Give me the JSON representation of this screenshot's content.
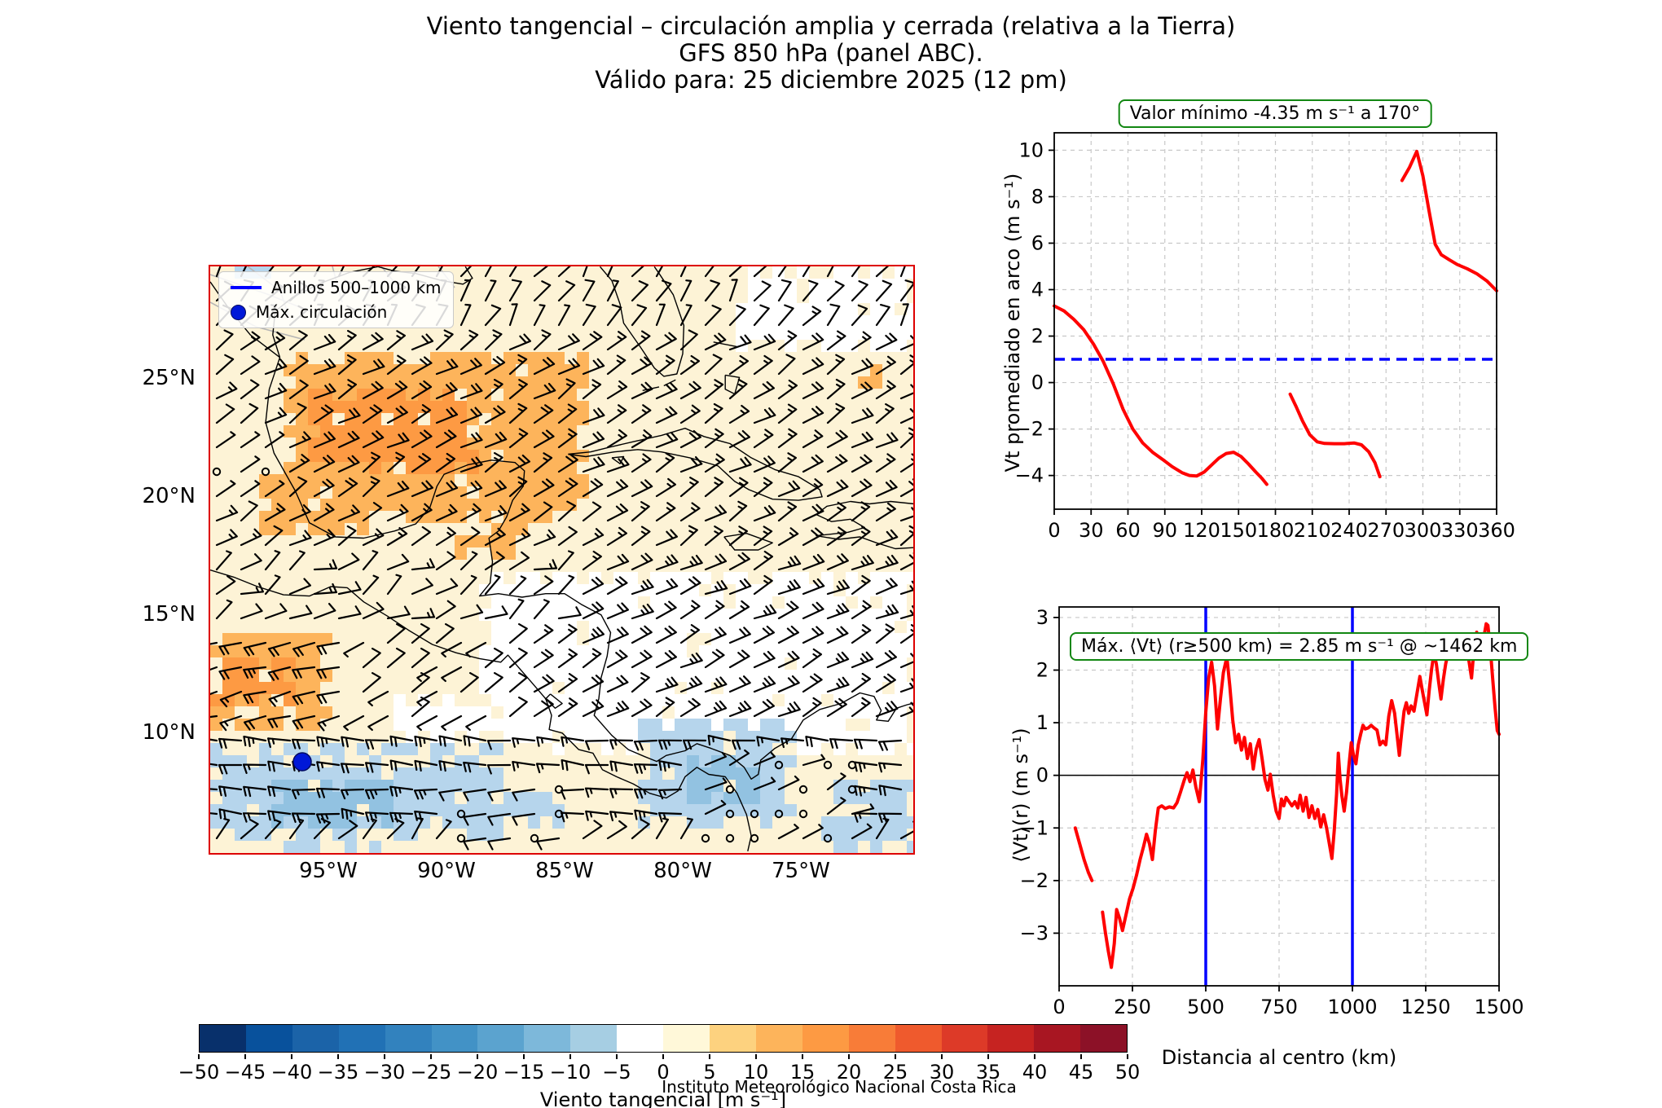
{
  "title": {
    "line1": "Viento tangencial – circulación amplia y cerrada (relativa a la Tierra)",
    "line2": "GFS 850 hPa (panel ABC).",
    "line3": "Válido para: 25 diciembre 2025 (12 pm)"
  },
  "map": {
    "legend": {
      "ring_label": "Anillos 500–1000 km",
      "max_label": "Máx. circulación"
    },
    "lat_ticks": [
      "25°N",
      "20°N",
      "15°N",
      "10°N"
    ],
    "lon_ticks": [
      "95°W",
      "90°W",
      "85°W",
      "80°W",
      "75°W"
    ],
    "border_color": "#dd0000",
    "marker_color": "#0018d8"
  },
  "chart_data": [
    {
      "type": "line",
      "annotation": "Valor mínimo -4.35 m s⁻¹ a 170°",
      "xlabel": "",
      "ylabel": "Vt promediado en arco (m s⁻¹)",
      "xlim": [
        0,
        360
      ],
      "ylim": [
        -5.45,
        10.75
      ],
      "xtick_vals": [
        0,
        30,
        60,
        90,
        120,
        150,
        180,
        210,
        240,
        270,
        300,
        330,
        360
      ],
      "xtick_labels": [
        "0",
        "30",
        "60",
        "90",
        "120",
        "150",
        "180",
        "210",
        "240",
        "270",
        "300",
        "330",
        "360"
      ],
      "ytick_vals": [
        -4,
        -2,
        0,
        2,
        4,
        6,
        8,
        10
      ],
      "ytick_labels": [
        "−4",
        "−2",
        "0",
        "2",
        "4",
        "6",
        "8",
        "10"
      ],
      "grid": true,
      "ref_hline_y": 1,
      "ref_color": "#0000ff",
      "series": [
        {
          "name": "Vt promediado",
          "color": "#ff0000",
          "segments": [
            [
              [
                0,
                3.3
              ],
              [
                8,
                3.08
              ],
              [
                16,
                2.72
              ],
              [
                24,
                2.28
              ],
              [
                32,
                1.65
              ],
              [
                40,
                0.9
              ],
              [
                48,
                -0.05
              ],
              [
                56,
                -1.15
              ],
              [
                64,
                -2.0
              ],
              [
                72,
                -2.6
              ],
              [
                80,
                -3.0
              ],
              [
                88,
                -3.3
              ],
              [
                96,
                -3.62
              ],
              [
                104,
                -3.88
              ],
              [
                110,
                -4.0
              ],
              [
                116,
                -4.02
              ],
              [
                122,
                -3.85
              ],
              [
                128,
                -3.55
              ],
              [
                134,
                -3.25
              ],
              [
                140,
                -3.05
              ],
              [
                146,
                -3.0
              ],
              [
                152,
                -3.18
              ],
              [
                158,
                -3.5
              ],
              [
                164,
                -3.85
              ],
              [
                169,
                -4.12
              ],
              [
                173,
                -4.38
              ]
            ],
            [
              [
                192,
                -0.5
              ],
              [
                197,
                -1.05
              ],
              [
                202,
                -1.65
              ],
              [
                208,
                -2.25
              ],
              [
                214,
                -2.55
              ],
              [
                220,
                -2.62
              ],
              [
                228,
                -2.63
              ],
              [
                236,
                -2.63
              ],
              [
                244,
                -2.6
              ],
              [
                250,
                -2.68
              ],
              [
                256,
                -2.98
              ],
              [
                261,
                -3.45
              ],
              [
                265,
                -4.05
              ]
            ],
            [
              [
                283,
                8.7
              ],
              [
                289,
                9.25
              ],
              [
                295,
                9.95
              ],
              [
                300,
                8.9
              ],
              [
                305,
                7.4
              ],
              [
                310,
                5.95
              ],
              [
                315,
                5.5
              ],
              [
                321,
                5.3
              ],
              [
                328,
                5.08
              ],
              [
                336,
                4.9
              ],
              [
                344,
                4.68
              ],
              [
                352,
                4.38
              ],
              [
                360,
                3.95
              ]
            ]
          ]
        }
      ]
    },
    {
      "type": "line",
      "annotation": "Máx. ⟨Vt⟩ (r≥500 km) = 2.85 m s⁻¹ @ ~1462 km",
      "xlabel": "Distancia al centro (km)",
      "ylabel": "⟨Vt⟩(r) (m s⁻¹)",
      "xlim": [
        0,
        1500
      ],
      "ylim": [
        -4.0,
        3.2
      ],
      "xtick_vals": [
        0,
        250,
        500,
        750,
        1000,
        1250,
        1500
      ],
      "xtick_labels": [
        "0",
        "250",
        "500",
        "750",
        "1000",
        "1250",
        "1500"
      ],
      "ytick_vals": [
        -3,
        -2,
        -1,
        0,
        1,
        2,
        3
      ],
      "ytick_labels": [
        "−3",
        "−2",
        "−1",
        "0",
        "1",
        "2",
        "3"
      ],
      "grid": true,
      "zero_line": true,
      "ref_vlines": [
        500,
        1000
      ],
      "ref_color": "#0000ff",
      "series": [
        {
          "name": "⟨Vt⟩(r)",
          "color": "#ff0000",
          "segments": [
            [
              [
                55,
                -1.0
              ],
              [
                70,
                -1.3
              ],
              [
                85,
                -1.6
              ],
              [
                100,
                -1.85
              ],
              [
                112,
                -2.0
              ]
            ],
            [
              [
                148,
                -2.6
              ],
              [
                158,
                -3.0
              ],
              [
                168,
                -3.35
              ],
              [
                178,
                -3.65
              ],
              [
                188,
                -3.2
              ],
              [
                196,
                -2.55
              ],
              [
                206,
                -2.72
              ],
              [
                216,
                -2.95
              ],
              [
                228,
                -2.65
              ],
              [
                240,
                -2.35
              ],
              [
                252,
                -2.15
              ],
              [
                264,
                -1.9
              ],
              [
                276,
                -1.6
              ],
              [
                288,
                -1.35
              ],
              [
                298,
                -1.12
              ],
              [
                308,
                -1.3
              ],
              [
                318,
                -1.6
              ],
              [
                328,
                -1.05
              ],
              [
                338,
                -0.62
              ],
              [
                350,
                -0.58
              ],
              [
                362,
                -0.63
              ],
              [
                376,
                -0.6
              ],
              [
                390,
                -0.62
              ],
              [
                402,
                -0.52
              ],
              [
                414,
                -0.32
              ],
              [
                426,
                -0.1
              ],
              [
                436,
                0.05
              ],
              [
                446,
                -0.12
              ],
              [
                456,
                0.1
              ],
              [
                466,
                -0.22
              ],
              [
                478,
                -0.5
              ],
              [
                490,
                0.3
              ],
              [
                500,
                1.2
              ],
              [
                510,
                1.85
              ],
              [
                520,
                2.15
              ],
              [
                530,
                1.7
              ],
              [
                540,
                0.88
              ],
              [
                550,
                1.45
              ],
              [
                560,
                1.95
              ],
              [
                572,
                2.25
              ],
              [
                582,
                1.7
              ],
              [
                592,
                1.05
              ],
              [
                602,
                0.62
              ],
              [
                612,
                0.78
              ],
              [
                622,
                0.48
              ],
              [
                632,
                0.72
              ],
              [
                642,
                0.32
              ],
              [
                652,
                0.6
              ],
              [
                662,
                0.12
              ],
              [
                672,
                0.5
              ],
              [
                682,
                0.68
              ],
              [
                692,
                0.32
              ],
              [
                702,
                -0.08
              ],
              [
                712,
                -0.28
              ],
              [
                720,
                0.02
              ],
              [
                730,
                -0.38
              ],
              [
                740,
                -0.68
              ],
              [
                750,
                -0.82
              ],
              [
                758,
                -0.45
              ],
              [
                766,
                -0.58
              ],
              [
                774,
                -0.42
              ],
              [
                784,
                -0.5
              ],
              [
                794,
                -0.58
              ],
              [
                804,
                -0.5
              ],
              [
                814,
                -0.62
              ],
              [
                822,
                -0.38
              ],
              [
                832,
                -0.68
              ],
              [
                842,
                -0.42
              ],
              [
                852,
                -0.8
              ],
              [
                862,
                -0.58
              ],
              [
                872,
                -0.82
              ],
              [
                882,
                -0.65
              ],
              [
                892,
                -0.98
              ],
              [
                902,
                -0.75
              ],
              [
                912,
                -1.0
              ],
              [
                922,
                -1.32
              ],
              [
                930,
                -1.58
              ],
              [
                938,
                -1.05
              ],
              [
                946,
                -0.35
              ],
              [
                952,
                0.42
              ],
              [
                958,
                -0.08
              ],
              [
                964,
                -0.38
              ],
              [
                972,
                -0.68
              ],
              [
                980,
                -0.32
              ],
              [
                988,
                0.18
              ],
              [
                996,
                0.62
              ],
              [
                1004,
                0.38
              ],
              [
                1012,
                0.22
              ],
              [
                1020,
                0.58
              ],
              [
                1028,
                0.78
              ],
              [
                1036,
                0.95
              ],
              [
                1044,
                0.88
              ],
              [
                1054,
                0.9
              ],
              [
                1064,
                0.95
              ],
              [
                1074,
                0.9
              ],
              [
                1084,
                0.86
              ],
              [
                1094,
                0.58
              ],
              [
                1104,
                0.65
              ],
              [
                1114,
                0.58
              ],
              [
                1124,
                1.12
              ],
              [
                1134,
                1.42
              ],
              [
                1144,
                1.18
              ],
              [
                1152,
                0.78
              ],
              [
                1160,
                0.38
              ],
              [
                1168,
                0.82
              ],
              [
                1176,
                1.22
              ],
              [
                1184,
                1.38
              ],
              [
                1192,
                1.18
              ],
              [
                1200,
                1.32
              ],
              [
                1210,
                1.22
              ],
              [
                1220,
                1.55
              ],
              [
                1230,
                1.88
              ],
              [
                1238,
                1.62
              ],
              [
                1246,
                1.38
              ],
              [
                1254,
                1.15
              ],
              [
                1262,
                1.62
              ],
              [
                1270,
                2.02
              ],
              [
                1278,
                2.32
              ],
              [
                1286,
                2.12
              ],
              [
                1294,
                1.78
              ],
              [
                1302,
                1.45
              ],
              [
                1310,
                1.82
              ],
              [
                1318,
                2.12
              ],
              [
                1326,
                2.32
              ],
              [
                1336,
                2.42
              ],
              [
                1346,
                2.52
              ],
              [
                1356,
                2.35
              ],
              [
                1366,
                2.58
              ],
              [
                1376,
                2.42
              ],
              [
                1386,
                2.62
              ],
              [
                1396,
                2.22
              ],
              [
                1406,
                1.85
              ],
              [
                1416,
                2.5
              ],
              [
                1424,
                2.72
              ],
              [
                1432,
                2.42
              ],
              [
                1440,
                2.22
              ],
              [
                1448,
                2.62
              ],
              [
                1456,
                2.88
              ],
              [
                1462,
                2.85
              ],
              [
                1470,
                2.42
              ],
              [
                1478,
                1.85
              ],
              [
                1486,
                1.3
              ],
              [
                1494,
                0.85
              ],
              [
                1500,
                0.78
              ]
            ]
          ]
        }
      ]
    }
  ],
  "colorbar": {
    "label": "Viento tangencial [m s⁻¹]",
    "ticks": [
      "−50",
      "−45",
      "−40",
      "−35",
      "−30",
      "−25",
      "−20",
      "−15",
      "−10",
      "−5",
      "0",
      "5",
      "10",
      "15",
      "20",
      "25",
      "30",
      "35",
      "40",
      "45",
      "50"
    ],
    "colors": [
      "#08306b",
      "#08519c",
      "#1b63a8",
      "#2171b5",
      "#3282be",
      "#4292c6",
      "#5ba3cf",
      "#7db8da",
      "#a6cee3",
      "#ffffff",
      "#fff8d9",
      "#fdd27f",
      "#fdb45b",
      "#fd9a43",
      "#f87c38",
      "#ef5a2d",
      "#dd3a28",
      "#c62321",
      "#a81622",
      "#8c1127"
    ]
  },
  "credit": "Instituto Meteorológico Nacional Costa Rica"
}
